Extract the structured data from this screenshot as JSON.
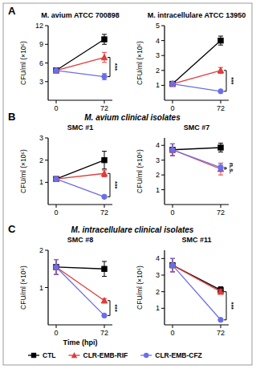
{
  "chart_data": [
    {
      "type": "line",
      "title": "M. avium ATCC 700898",
      "ylabel": "CFU/ml (×10⁶)",
      "x": [
        0,
        72
      ],
      "xlim": [
        -12,
        84
      ],
      "xticks": [
        0,
        72
      ],
      "ylim": [
        0,
        12
      ],
      "yticks": [
        3,
        6,
        9,
        12
      ],
      "annotation": "***",
      "series": [
        {
          "name": "CTL",
          "color": "#000000",
          "marker": "square",
          "values": [
            4.8,
            9.8
          ],
          "errors": [
            0.3,
            0.8
          ]
        },
        {
          "name": "CLR-EMB-RIF",
          "color": "#e03c3c",
          "marker": "triangle",
          "values": [
            4.8,
            6.9
          ],
          "errors": [
            0.3,
            0.8
          ]
        },
        {
          "name": "CLR-EMB-CFZ",
          "color": "#6a6ee8",
          "marker": "circle",
          "values": [
            4.8,
            3.8
          ],
          "errors": [
            0.3,
            0.5
          ]
        }
      ]
    },
    {
      "type": "line",
      "title": "M. intracellulare ATCC 13950",
      "ylabel": "CFU/ml (×10⁶)",
      "x": [
        0,
        72
      ],
      "xlim": [
        -12,
        84
      ],
      "xticks": [
        0,
        72
      ],
      "ylim": [
        0,
        5
      ],
      "yticks": [
        1,
        2,
        3,
        4,
        5
      ],
      "annotation": "***",
      "series": [
        {
          "name": "CTL",
          "color": "#000000",
          "marker": "square",
          "values": [
            1.1,
            4.0
          ],
          "errors": [
            0.05,
            0.3
          ]
        },
        {
          "name": "CLR-EMB-RIF",
          "color": "#e03c3c",
          "marker": "triangle",
          "values": [
            1.1,
            2.0
          ],
          "errors": [
            0.05,
            0.2
          ]
        },
        {
          "name": "CLR-EMB-CFZ",
          "color": "#6a6ee8",
          "marker": "circle",
          "values": [
            1.1,
            0.6
          ],
          "errors": [
            0.05,
            0.05
          ]
        }
      ]
    },
    {
      "type": "line",
      "title": "SMC #1",
      "ylabel": "CFU/ml (×10⁶)",
      "x": [
        0,
        72
      ],
      "xlim": [
        -12,
        84
      ],
      "xticks": [
        0,
        72
      ],
      "ylim": [
        0,
        3
      ],
      "yticks": [
        1,
        2,
        3
      ],
      "annotation": "***",
      "series": [
        {
          "name": "CTL",
          "color": "#000000",
          "marker": "square",
          "values": [
            1.15,
            2.0
          ],
          "errors": [
            0.1,
            0.4
          ]
        },
        {
          "name": "CLR-EMB-RIF",
          "color": "#e03c3c",
          "marker": "triangle",
          "values": [
            1.15,
            1.4
          ],
          "errors": [
            0.1,
            0.15
          ]
        },
        {
          "name": "CLR-EMB-CFZ",
          "color": "#6a6ee8",
          "marker": "circle",
          "values": [
            1.15,
            0.35
          ],
          "errors": [
            0.1,
            0.03
          ]
        }
      ]
    },
    {
      "type": "line",
      "title": "SMC #7",
      "ylabel": "CFU/ml (×10⁶)",
      "x": [
        0,
        72
      ],
      "xlim": [
        -12,
        84
      ],
      "xticks": [
        0,
        72
      ],
      "ylim": [
        0,
        4.5
      ],
      "yticks": [
        1,
        2,
        3,
        4
      ],
      "annotation": "n.s.",
      "series": [
        {
          "name": "CTL",
          "color": "#000000",
          "marker": "square",
          "values": [
            3.7,
            3.85
          ],
          "errors": [
            0.4,
            0.3
          ]
        },
        {
          "name": "CLR-EMB-RIF",
          "color": "#e03c3c",
          "marker": "triangle",
          "values": [
            3.7,
            2.4
          ],
          "errors": [
            0.4,
            0.4
          ]
        },
        {
          "name": "CLR-EMB-CFZ",
          "color": "#6a6ee8",
          "marker": "circle",
          "values": [
            3.7,
            2.5
          ],
          "errors": [
            0.4,
            0.2
          ]
        }
      ]
    },
    {
      "type": "line",
      "title": "SMC #8",
      "ylabel": "CFU/ml (×10⁶)",
      "xlabel": "Time (hpi)",
      "x": [
        0,
        72
      ],
      "xlim": [
        -12,
        84
      ],
      "xticks": [
        0,
        72
      ],
      "ylim": [
        0,
        2
      ],
      "yticks": [
        1,
        2
      ],
      "annotation": "***",
      "series": [
        {
          "name": "CTL",
          "color": "#000000",
          "marker": "square",
          "values": [
            1.55,
            1.5
          ],
          "errors": [
            0.2,
            0.2
          ]
        },
        {
          "name": "CLR-EMB-RIF",
          "color": "#e03c3c",
          "marker": "triangle",
          "values": [
            1.55,
            0.65
          ],
          "errors": [
            0.2,
            0.05
          ]
        },
        {
          "name": "CLR-EMB-CFZ",
          "color": "#6a6ee8",
          "marker": "circle",
          "values": [
            1.55,
            0.25
          ],
          "errors": [
            0.2,
            0.02
          ]
        }
      ]
    },
    {
      "type": "line",
      "title": "SMC #11",
      "ylabel": "CFU/ml (×10⁶)",
      "x": [
        0,
        72
      ],
      "xlim": [
        -12,
        84
      ],
      "xticks": [
        0,
        72
      ],
      "ylim": [
        0,
        4.5
      ],
      "yticks": [
        1,
        2,
        3,
        4
      ],
      "annotation": "***",
      "series": [
        {
          "name": "CTL",
          "color": "#000000",
          "marker": "square",
          "values": [
            3.6,
            2.1
          ],
          "errors": [
            0.4,
            0.2
          ]
        },
        {
          "name": "CLR-EMB-RIF",
          "color": "#e03c3c",
          "marker": "triangle",
          "values": [
            3.6,
            2.0
          ],
          "errors": [
            0.4,
            0.15
          ]
        },
        {
          "name": "CLR-EMB-CFZ",
          "color": "#6a6ee8",
          "marker": "circle",
          "values": [
            3.6,
            0.3
          ],
          "errors": [
            0.4,
            0.03
          ]
        }
      ]
    }
  ],
  "figure": {
    "panels": [
      {
        "label": "A"
      },
      {
        "label": "B",
        "heading": "M. avium clinical isolates"
      },
      {
        "label": "C",
        "heading": "M. intracellulare clinical isolates"
      }
    ]
  }
}
